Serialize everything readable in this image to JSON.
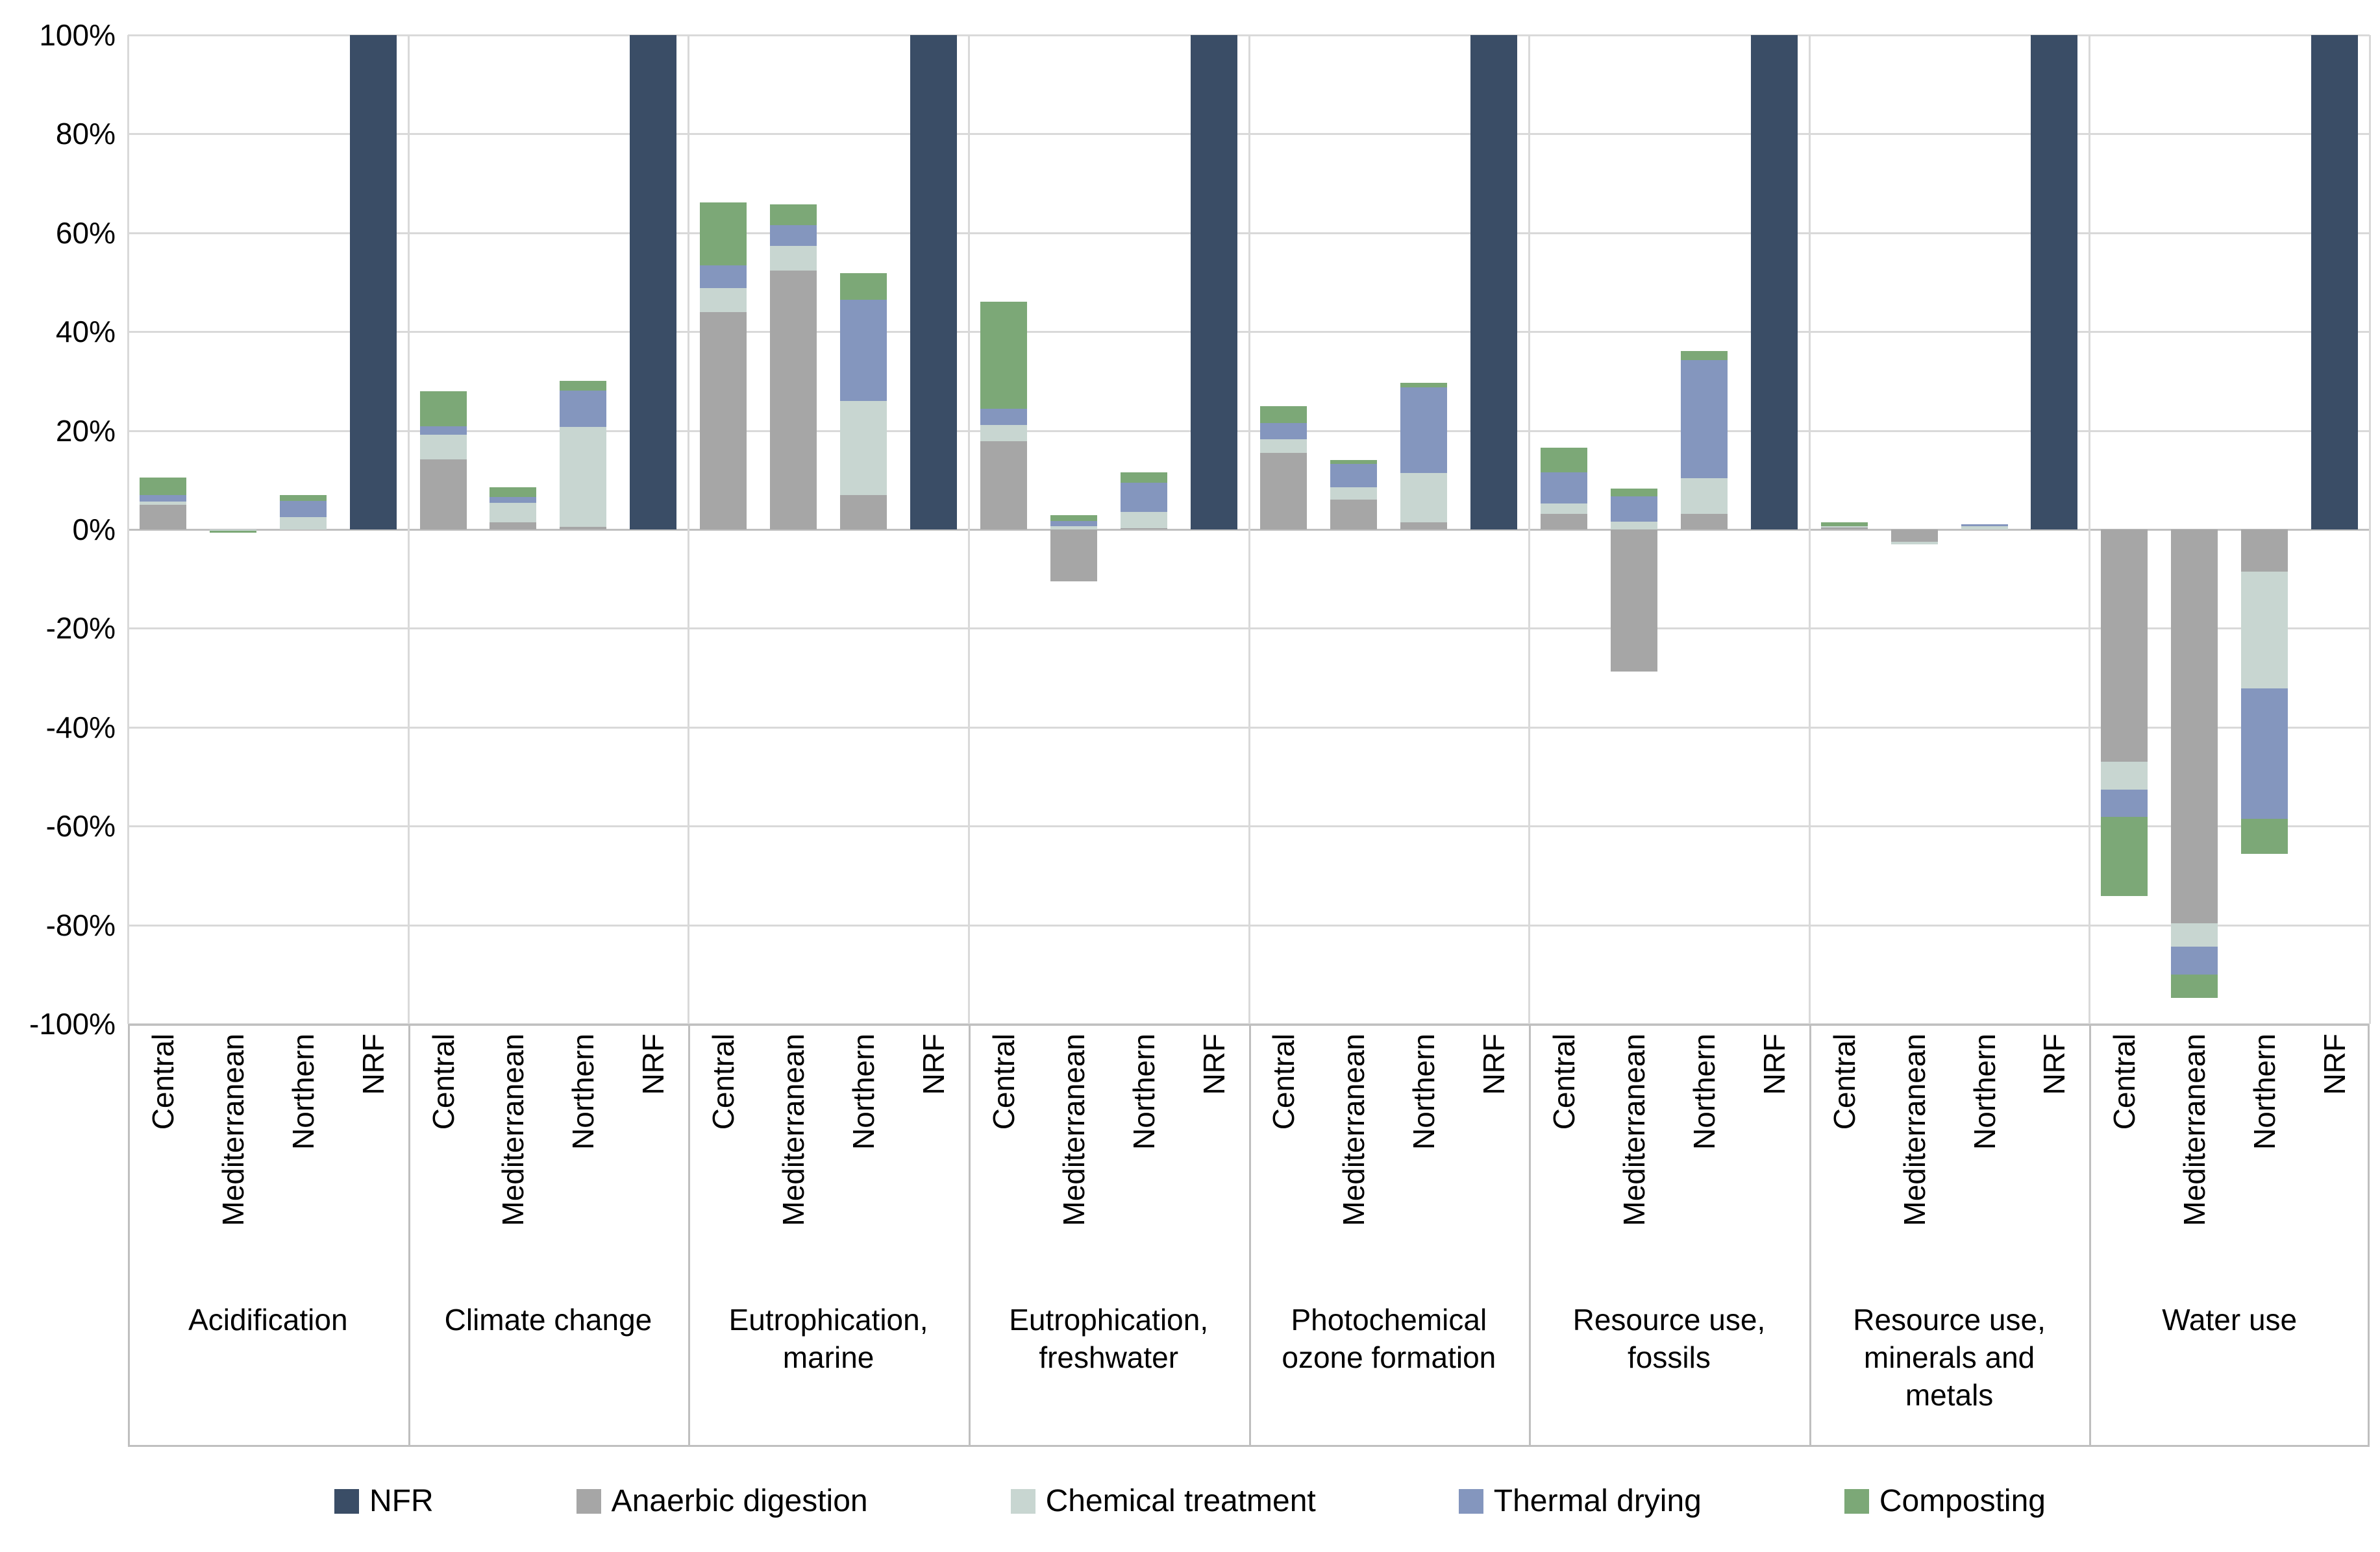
{
  "chart_data": {
    "type": "stacked-bar",
    "unit": "percent",
    "title": "",
    "background": "#ffffff",
    "colors": {
      "grid": "#d9d9d9",
      "axis": "#bfbfbf",
      "text": "#000000"
    },
    "y_axis": {
      "min": -100,
      "max": 100,
      "step": 20,
      "tick_labels": [
        "100%",
        "80%",
        "60%",
        "40%",
        "20%",
        "0%",
        "-20%",
        "-40%",
        "-60%",
        "-80%",
        "-100%"
      ]
    },
    "series": [
      {
        "key": "NFR",
        "name": "NFR",
        "color": "#3a4d66",
        "legend_marker": "square"
      },
      {
        "key": "AD",
        "name": "Anaerbic digestion",
        "color": "#a6a6a6",
        "legend_marker": "square"
      },
      {
        "key": "CT",
        "name": "Chemical treatment",
        "color": "#c8d6d1",
        "legend_marker": "square"
      },
      {
        "key": "TD",
        "name": "Thermal drying",
        "color": "#8496be",
        "legend_marker": "square"
      },
      {
        "key": "Comp",
        "name": "Composting",
        "color": "#7ca877",
        "legend_marker": "square"
      }
    ],
    "legend_position": "bottom",
    "grid": "horizontal",
    "groups": [
      {
        "label": "Acidification",
        "bars": [
          {
            "region": "Central",
            "values": {
              "AD": 5.0,
              "CT": 0.7,
              "TD": 1.2,
              "Comp": 3.6
            }
          },
          {
            "region": "Mediterranean",
            "values": {
              "CT": -0.3,
              "Comp": -0.3
            }
          },
          {
            "region": "Northern",
            "values": {
              "CT": 2.5,
              "TD": 3.3,
              "Comp": 1.2
            }
          },
          {
            "region": "NRF",
            "values": {
              "NFR": 100
            }
          }
        ]
      },
      {
        "label": "Climate change",
        "bars": [
          {
            "region": "Central",
            "values": {
              "AD": 14.2,
              "CT": 5.0,
              "TD": 1.7,
              "Comp": 7.1
            }
          },
          {
            "region": "Mediterranean",
            "values": {
              "AD": 1.4,
              "CT": 4.0,
              "TD": 1.2,
              "Comp": 1.9
            }
          },
          {
            "region": "Northern",
            "values": {
              "AD": 0.5,
              "CT": 20.3,
              "TD": 7.3,
              "Comp": 2.0
            }
          },
          {
            "region": "NRF",
            "values": {
              "NFR": 100
            }
          }
        ]
      },
      {
        "label": "Eutrophication,\nmarine",
        "bars": [
          {
            "region": "Central",
            "values": {
              "AD": 44.0,
              "CT": 4.8,
              "TD": 4.6,
              "Comp": 12.7
            }
          },
          {
            "region": "Mediterranean",
            "values": {
              "AD": 52.4,
              "CT": 4.9,
              "TD": 4.3,
              "Comp": 4.1
            }
          },
          {
            "region": "Northern",
            "values": {
              "AD": 7.0,
              "CT": 19.0,
              "TD": 20.5,
              "Comp": 5.4
            }
          },
          {
            "region": "NRF",
            "values": {
              "NFR": 100
            }
          }
        ]
      },
      {
        "label": "Eutrophication,\nfreshwater",
        "bars": [
          {
            "region": "Central",
            "values": {
              "AD": 17.8,
              "CT": 3.3,
              "TD": 3.3,
              "Comp": 21.6
            }
          },
          {
            "region": "Mediterranean",
            "values": {
              "AD": -10.5,
              "CT": 0.7,
              "TD": 1.0,
              "Comp": 1.2
            }
          },
          {
            "region": "Northern",
            "values": {
              "AD": 0.3,
              "CT": 3.3,
              "TD": 5.9,
              "Comp": 2.0
            }
          },
          {
            "region": "NRF",
            "values": {
              "NFR": 100
            }
          }
        ]
      },
      {
        "label": "Photochemical\nozone formation",
        "bars": [
          {
            "region": "Central",
            "values": {
              "AD": 15.5,
              "CT": 2.7,
              "TD": 3.3,
              "Comp": 3.5
            }
          },
          {
            "region": "Mediterranean",
            "values": {
              "AD": 6.0,
              "CT": 2.5,
              "TD": 4.8,
              "Comp": 0.7
            }
          },
          {
            "region": "Northern",
            "values": {
              "AD": 1.5,
              "CT": 9.9,
              "TD": 17.4,
              "Comp": 0.8
            }
          },
          {
            "region": "NRF",
            "values": {
              "NFR": 100
            }
          }
        ]
      },
      {
        "label": "Resource use,\nfossils",
        "bars": [
          {
            "region": "Central",
            "values": {
              "AD": 3.1,
              "CT": 2.1,
              "TD": 6.3,
              "Comp": 5.0
            }
          },
          {
            "region": "Mediterranean",
            "values": {
              "AD": -28.7,
              "CT": 1.6,
              "TD": 5.1,
              "Comp": 1.6
            }
          },
          {
            "region": "Northern",
            "values": {
              "AD": 3.1,
              "CT": 7.3,
              "TD": 23.8,
              "Comp": 1.9
            }
          },
          {
            "region": "NRF",
            "values": {
              "NFR": 100
            }
          }
        ]
      },
      {
        "label": "Resource use,\nminerals and\nmetals",
        "bars": [
          {
            "region": "Central",
            "values": {
              "AD": 0.4,
              "CT": 0.2,
              "Comp": 0.8
            }
          },
          {
            "region": "Mediterranean",
            "values": {
              "AD": -2.5,
              "CT": -0.5
            }
          },
          {
            "region": "Northern",
            "values": {
              "CT": 0.6,
              "TD": 0.5
            }
          },
          {
            "region": "NRF",
            "values": {
              "NFR": 100
            }
          }
        ]
      },
      {
        "label": "Water use",
        "bars": [
          {
            "region": "Central",
            "values": {
              "AD": -47.0,
              "CT": -5.6,
              "TD": -5.5,
              "Comp": -16.0
            }
          },
          {
            "region": "Mediterranean",
            "values": {
              "AD": -79.6,
              "CT": -4.8,
              "TD": -5.6,
              "Comp": -4.8
            }
          },
          {
            "region": "Northern",
            "values": {
              "AD": -8.5,
              "CT": -23.7,
              "TD": -26.3,
              "Comp": -7.1
            }
          },
          {
            "region": "NRF",
            "values": {
              "NFR": 100
            }
          }
        ]
      }
    ]
  }
}
